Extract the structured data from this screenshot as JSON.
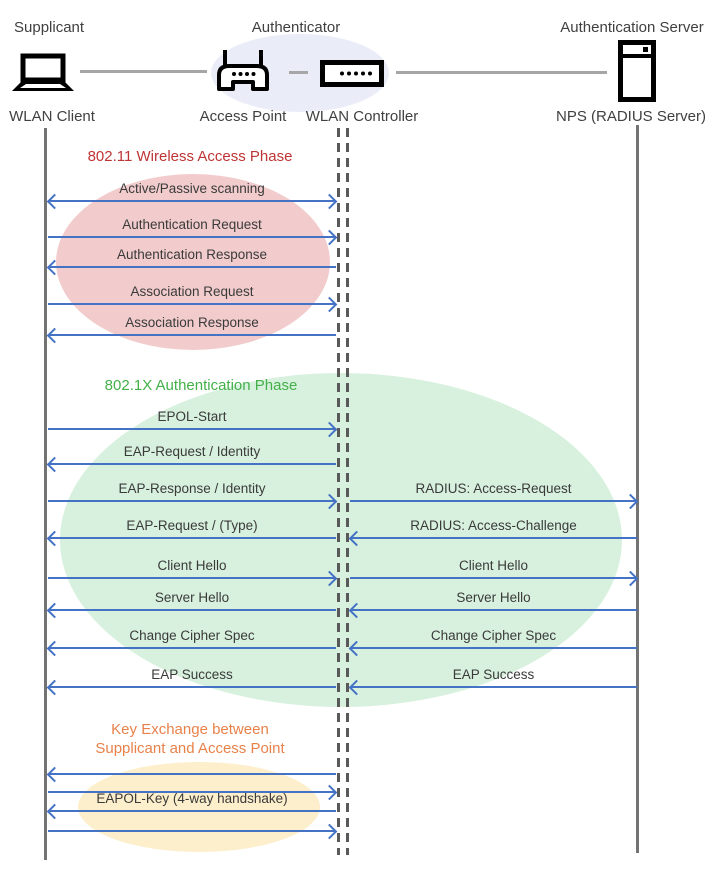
{
  "header": {
    "roles": [
      {
        "label": "Supplicant"
      },
      {
        "label": "Authenticator"
      },
      {
        "label": "Authentication Server"
      }
    ],
    "devices": [
      {
        "label": "WLAN Client",
        "icon": "laptop-icon"
      },
      {
        "label": "Access Point",
        "icon": "access-point-icon"
      },
      {
        "label": "WLAN Controller",
        "icon": "wlan-controller-icon"
      },
      {
        "label": "NPS (RADIUS Server)",
        "icon": "server-icon"
      }
    ]
  },
  "colors": {
    "arrow": "#4472c4",
    "lifeline": "#737373",
    "dashed_lifeline": "#595959",
    "phase1_title": "#be3435",
    "phase1_fill": "#f2cccc",
    "phase2_title": "#43b049",
    "phase2_fill": "#d8f1de",
    "phase3_title": "#e8824a",
    "phase3_fill": "#fdefcb",
    "authenticator_fill": "#eaedf8"
  },
  "phases": [
    {
      "title": "802.11 Wireless Access Phase",
      "rows": [
        {
          "segments": [
            {
              "side": "left",
              "label": "Active/Passive scanning",
              "dir": "both"
            }
          ]
        },
        {
          "segments": [
            {
              "side": "left",
              "label": "Authentication Request",
              "dir": "right"
            }
          ]
        },
        {
          "segments": [
            {
              "side": "left",
              "label": "Authentication Response",
              "dir": "left"
            }
          ]
        },
        {
          "segments": [
            {
              "side": "left",
              "label": "Association Request",
              "dir": "right"
            }
          ]
        },
        {
          "segments": [
            {
              "side": "left",
              "label": "Association Response",
              "dir": "left"
            }
          ]
        }
      ]
    },
    {
      "title": "802.1X Authentication Phase",
      "rows": [
        {
          "segments": [
            {
              "side": "left",
              "label": "EPOL-Start",
              "dir": "right"
            }
          ]
        },
        {
          "segments": [
            {
              "side": "left",
              "label": "EAP-Request / Identity",
              "dir": "left"
            }
          ]
        },
        {
          "segments": [
            {
              "side": "left",
              "label": "EAP-Response / Identity",
              "dir": "right"
            },
            {
              "side": "right",
              "label": "RADIUS: Access-Request",
              "dir": "right"
            }
          ]
        },
        {
          "segments": [
            {
              "side": "left",
              "label": "EAP-Request / (Type)",
              "dir": "left"
            },
            {
              "side": "right",
              "label": "RADIUS: Access-Challenge",
              "dir": "left"
            }
          ]
        },
        {
          "segments": [
            {
              "side": "left",
              "label": "Client Hello",
              "dir": "right"
            },
            {
              "side": "right",
              "label": "Client Hello",
              "dir": "right"
            }
          ]
        },
        {
          "segments": [
            {
              "side": "left",
              "label": "Server Hello",
              "dir": "left"
            },
            {
              "side": "right",
              "label": "Server Hello",
              "dir": "left"
            }
          ]
        },
        {
          "segments": [
            {
              "side": "left",
              "label": "Change Cipher Spec",
              "dir": "left"
            },
            {
              "side": "right",
              "label": "Change Cipher Spec",
              "dir": "left"
            }
          ]
        },
        {
          "segments": [
            {
              "side": "left",
              "label": "EAP Success",
              "dir": "left"
            },
            {
              "side": "right",
              "label": "EAP Success",
              "dir": "left"
            }
          ]
        }
      ]
    },
    {
      "title": "Key Exchange between\nSupplicant and Access Point",
      "rows": [
        {
          "segments": [
            {
              "side": "left",
              "label": "",
              "dir": "left"
            }
          ]
        },
        {
          "segments": [
            {
              "side": "left",
              "label": "",
              "dir": "right"
            }
          ]
        },
        {
          "segments": [
            {
              "side": "left",
              "label": "EAPOL-Key (4-way handshake)",
              "dir": "left"
            }
          ]
        },
        {
          "segments": [
            {
              "side": "left",
              "label": "",
              "dir": "right"
            }
          ]
        }
      ]
    }
  ]
}
